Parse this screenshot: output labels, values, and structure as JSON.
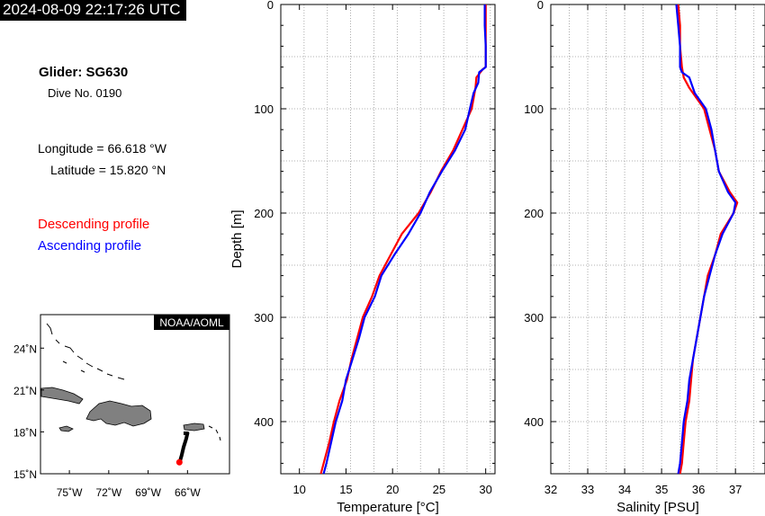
{
  "timestamp": "2024-08-09 22:17:26 UTC",
  "glider": {
    "title": "Glider: SG630",
    "dive": "Dive No. 0190",
    "longitude": "Longitude = 66.618 °W",
    "latitude": "Latitude = 15.820 °N"
  },
  "legend": {
    "descending": {
      "label": "Descending profile",
      "color": "#ff0000"
    },
    "ascending": {
      "label": "Ascending profile",
      "color": "#0000ff"
    }
  },
  "map": {
    "credit": "NOAA/AOML",
    "lat_ticks": [
      "24˚N",
      "21˚N",
      "18˚N",
      "15˚N"
    ],
    "lon_ticks": [
      "75˚W",
      "72˚W",
      "69˚W",
      "66˚W"
    ],
    "track": [
      [
        -66.3,
        17.9
      ],
      [
        -66.0,
        17.9
      ],
      [
        -66.1,
        17.5
      ],
      [
        -66.3,
        16.9
      ],
      [
        -66.45,
        16.3
      ],
      [
        -66.6,
        15.82
      ]
    ],
    "position": [
      -66.618,
      15.82
    ]
  },
  "chart_data": [
    {
      "type": "line",
      "xlabel": "Temperature [°C]",
      "ylabel": "Depth [m]",
      "xlim": [
        8,
        31
      ],
      "ylim": [
        450,
        0
      ],
      "xticks": [
        10,
        15,
        20,
        25,
        30
      ],
      "yticks": [
        0,
        100,
        200,
        300,
        400
      ],
      "grid": true,
      "series": [
        {
          "name": "Descending profile",
          "color": "#ff0000",
          "depth": [
            0,
            20,
            40,
            60,
            62,
            70,
            80,
            100,
            120,
            140,
            160,
            180,
            200,
            220,
            240,
            260,
            280,
            300,
            320,
            340,
            360,
            380,
            400,
            420,
            440,
            450
          ],
          "values": [
            30.0,
            30.0,
            30.0,
            30.0,
            29.7,
            29.0,
            28.9,
            28.5,
            27.5,
            26.5,
            25.2,
            24.1,
            22.8,
            21.0,
            19.8,
            18.6,
            17.8,
            16.8,
            16.2,
            15.6,
            15.1,
            14.3,
            13.7,
            13.2,
            12.6,
            12.3
          ]
        },
        {
          "name": "Ascending profile",
          "color": "#0000ff",
          "depth": [
            0,
            20,
            40,
            60,
            65,
            75,
            85,
            100,
            120,
            140,
            160,
            180,
            200,
            220,
            240,
            260,
            280,
            300,
            320,
            340,
            360,
            380,
            400,
            420,
            440,
            450
          ],
          "values": [
            29.9,
            29.9,
            30.0,
            30.0,
            29.3,
            29.2,
            28.7,
            28.3,
            27.8,
            26.7,
            25.3,
            24.0,
            23.0,
            21.7,
            20.2,
            18.8,
            18.1,
            17.0,
            16.4,
            15.7,
            15.0,
            14.6,
            13.9,
            13.4,
            12.9,
            12.6
          ]
        }
      ]
    },
    {
      "type": "line",
      "xlabel": "Salinity [PSU]",
      "ylabel": "",
      "xlim": [
        32,
        37.8
      ],
      "ylim": [
        450,
        0
      ],
      "xticks": [
        32,
        33,
        34,
        35,
        36,
        37
      ],
      "yticks": [
        0,
        100,
        200,
        300,
        400
      ],
      "grid": true,
      "series": [
        {
          "name": "Descending profile",
          "color": "#ff0000",
          "depth": [
            0,
            20,
            40,
            60,
            70,
            80,
            90,
            100,
            120,
            140,
            160,
            180,
            190,
            200,
            220,
            240,
            260,
            280,
            300,
            320,
            340,
            360,
            380,
            400,
            420,
            440,
            450
          ],
          "values": [
            35.45,
            35.5,
            35.5,
            35.55,
            35.6,
            35.75,
            35.95,
            36.15,
            36.3,
            36.45,
            36.55,
            36.85,
            37.05,
            36.95,
            36.6,
            36.45,
            36.25,
            36.15,
            36.05,
            35.95,
            35.85,
            35.8,
            35.75,
            35.65,
            35.6,
            35.55,
            35.5
          ]
        },
        {
          "name": "Ascending profile",
          "color": "#0000ff",
          "depth": [
            0,
            20,
            40,
            60,
            65,
            70,
            85,
            100,
            120,
            140,
            160,
            180,
            190,
            200,
            220,
            240,
            260,
            280,
            300,
            320,
            340,
            360,
            380,
            400,
            420,
            440,
            450
          ],
          "values": [
            35.4,
            35.45,
            35.5,
            35.5,
            35.55,
            35.75,
            35.9,
            36.2,
            36.35,
            36.45,
            36.55,
            36.8,
            37.0,
            36.95,
            36.65,
            36.45,
            36.3,
            36.15,
            36.05,
            35.95,
            35.85,
            35.75,
            35.7,
            35.6,
            35.55,
            35.5,
            35.45
          ]
        }
      ]
    }
  ]
}
